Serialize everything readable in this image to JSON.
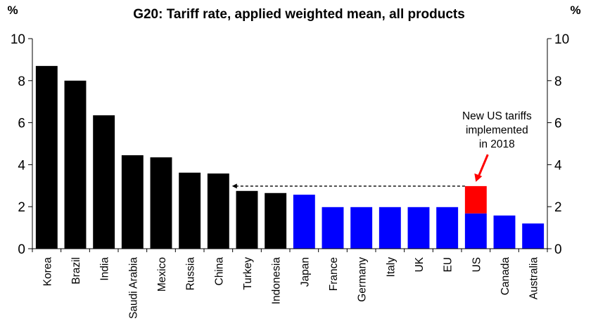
{
  "chart_data": {
    "type": "bar",
    "title": "G20: Tariff rate, applied weighted mean, all products",
    "ylabel_left": "%",
    "ylabel_right": "%",
    "ylim": [
      0,
      10
    ],
    "yticks": [
      0,
      2,
      4,
      6,
      8,
      10
    ],
    "grid": false,
    "categories": [
      "Korea",
      "Brazil",
      "India",
      "Saudi Arabia",
      "Mexico",
      "Russia",
      "China",
      "Turkey",
      "Indonesia",
      "Japan",
      "France",
      "Germany",
      "Italy",
      "UK",
      "EU",
      "US",
      "Canada",
      "Australia"
    ],
    "values": [
      8.7,
      8.0,
      6.35,
      4.45,
      4.35,
      3.62,
      3.58,
      2.75,
      2.65,
      2.57,
      1.98,
      1.98,
      1.98,
      1.98,
      1.98,
      1.68,
      1.58,
      1.2
    ],
    "bar_colors": [
      "#000000",
      "#000000",
      "#000000",
      "#000000",
      "#000000",
      "#000000",
      "#000000",
      "#000000",
      "#000000",
      "#0000ff",
      "#0000ff",
      "#0000ff",
      "#0000ff",
      "#0000ff",
      "#0000ff",
      "#0000ff",
      "#0000ff",
      "#0000ff"
    ],
    "us_new_tariff_increment": {
      "category": "US",
      "base": 1.68,
      "top": 2.98,
      "color": "#ff0000"
    },
    "reference_line": {
      "value": 2.98,
      "from_category": "US",
      "to_category": "China",
      "style": "dashed-arrow"
    },
    "annotation": {
      "lines": [
        "New US tariffs",
        "implemented",
        "in 2018"
      ],
      "arrow_color": "#ff0000",
      "points_to": "US"
    }
  }
}
